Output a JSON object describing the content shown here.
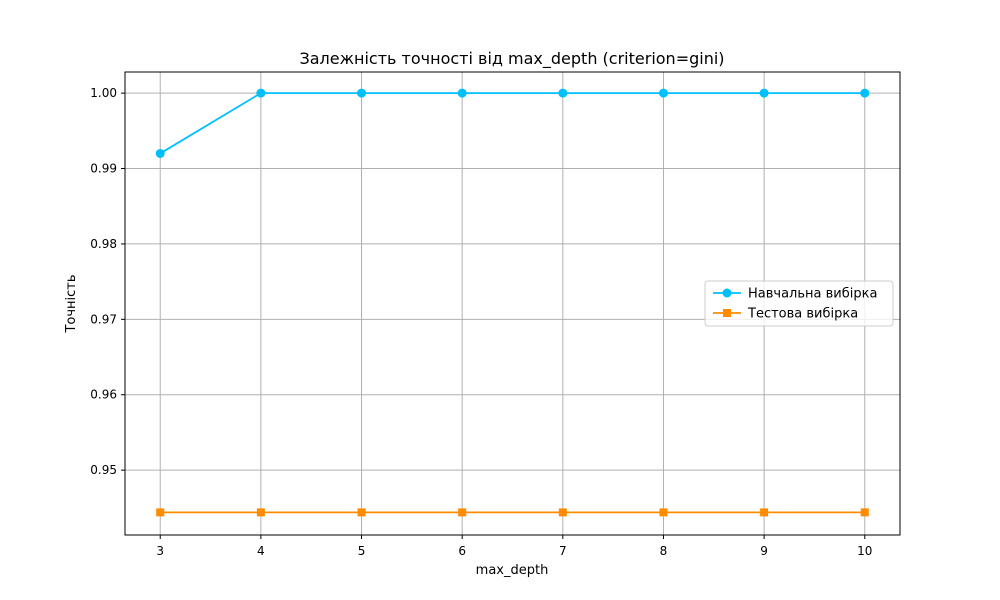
{
  "chart_data": {
    "type": "line",
    "title": "Залежність точності від max_depth (criterion=gini)",
    "xlabel": "max_depth",
    "ylabel": "Точність",
    "x": [
      3,
      4,
      5,
      6,
      7,
      8,
      9,
      10
    ],
    "xlim": [
      2.65,
      10.35
    ],
    "ylim": [
      0.9414,
      1.0028
    ],
    "xticks": [
      "3",
      "4",
      "5",
      "6",
      "7",
      "8",
      "9",
      "10"
    ],
    "yticks": [
      "0.95",
      "0.96",
      "0.97",
      "0.98",
      "0.99",
      "1.00"
    ],
    "ytick_values": [
      0.95,
      0.96,
      0.97,
      0.98,
      0.99,
      1.0
    ],
    "grid": true,
    "legend_position": "center-right",
    "series": [
      {
        "name": "Навчальна вибірка",
        "values": [
          0.992,
          1.0,
          1.0,
          1.0,
          1.0,
          1.0,
          1.0,
          1.0
        ],
        "color": "#00bfff",
        "marker": "circle"
      },
      {
        "name": "Тестова вибірка",
        "values": [
          0.9444,
          0.9444,
          0.9444,
          0.9444,
          0.9444,
          0.9444,
          0.9444,
          0.9444
        ],
        "color": "#ff8c00",
        "marker": "square"
      }
    ]
  }
}
